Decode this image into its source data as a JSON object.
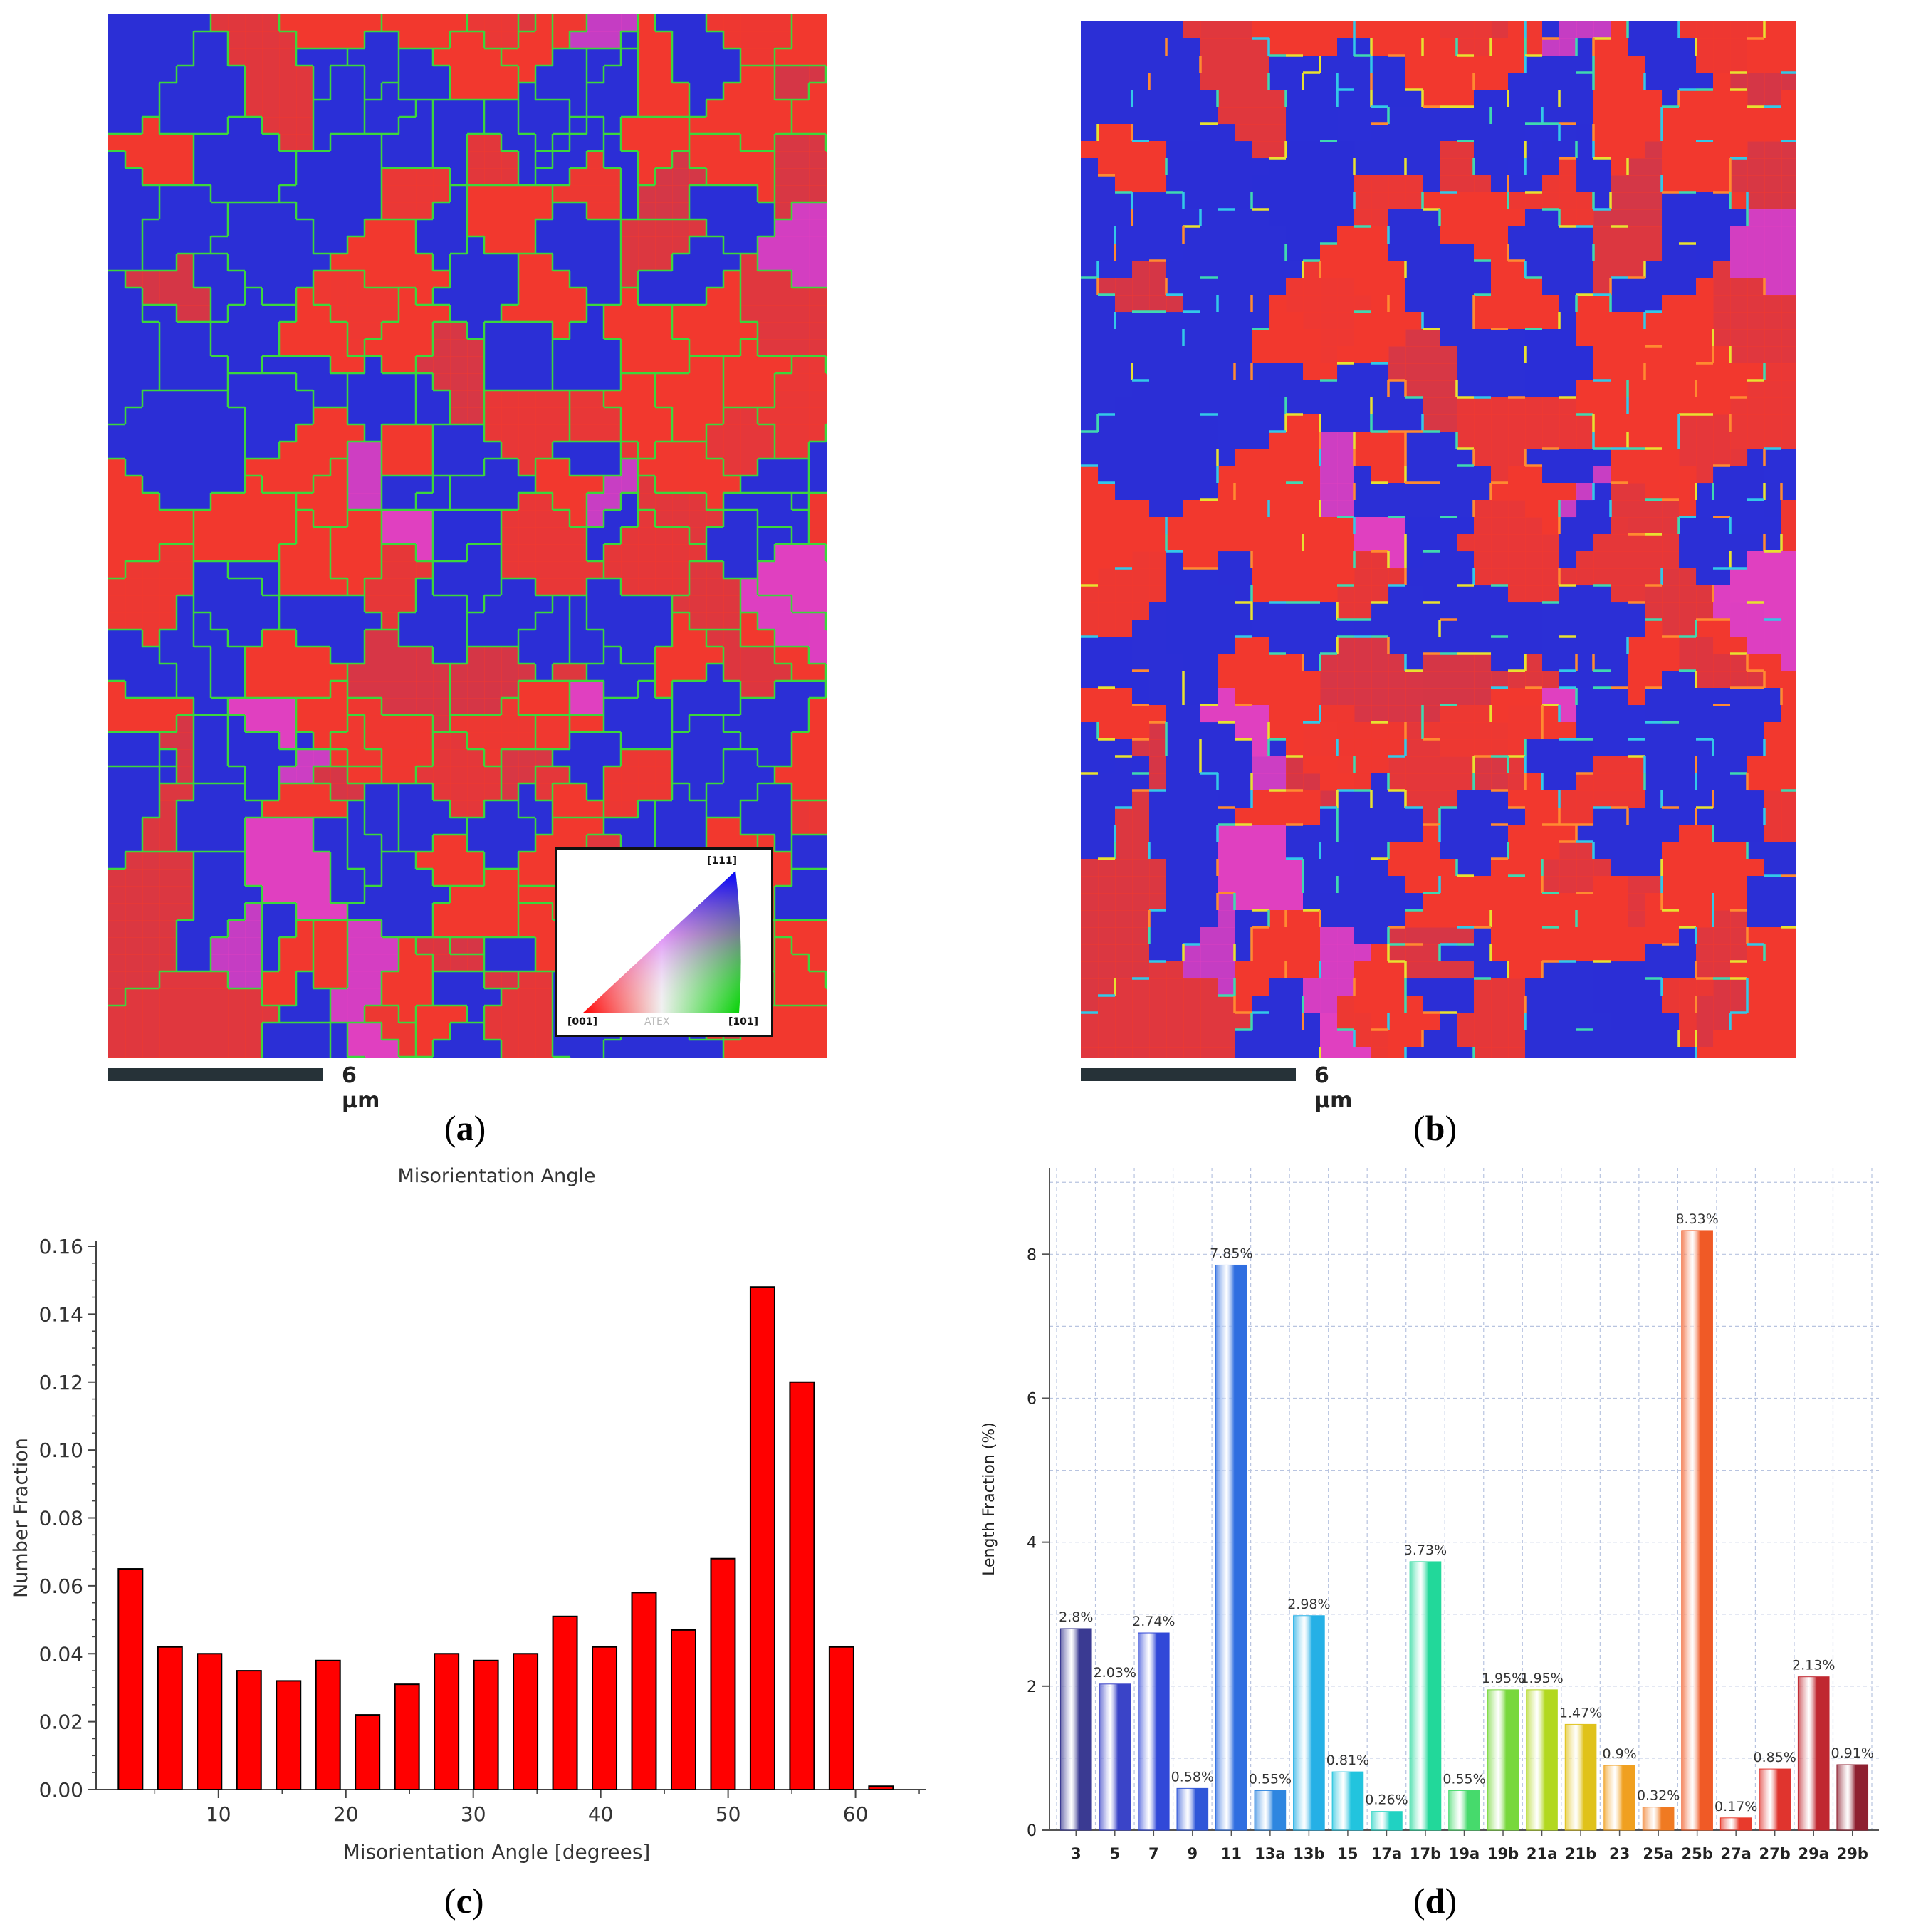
{
  "panel_a": {
    "caption_letter": "a",
    "scale_label": "6 µm",
    "legend": {
      "top": "[111]",
      "left": "[001]",
      "right": "[101]",
      "watermark": "ATEX"
    }
  },
  "panel_b": {
    "caption_letter": "b",
    "scale_label": "6 µm"
  },
  "panel_c": {
    "caption_letter": "c"
  },
  "panel_d": {
    "caption_letter": "d"
  },
  "colors": {
    "red_grain": "#f2382e",
    "blue_grain": "#2b2fd6",
    "green_boundary": "#3cd63c",
    "bar_red": "#ff0000"
  },
  "chart_data": [
    {
      "id": "c",
      "type": "bar",
      "title": "Misorientation Angle",
      "xlabel": "Misorientation Angle [degrees]",
      "ylabel": "Number Fraction",
      "x": [
        3.1,
        6.2,
        9.3,
        12.4,
        15.5,
        18.6,
        21.7,
        24.8,
        27.9,
        31.0,
        34.1,
        37.2,
        40.3,
        43.4,
        46.5,
        49.6,
        52.7,
        55.8,
        58.9,
        62.0
      ],
      "values": [
        0.065,
        0.042,
        0.04,
        0.035,
        0.032,
        0.038,
        0.022,
        0.031,
        0.04,
        0.038,
        0.04,
        0.051,
        0.042,
        0.058,
        0.047,
        0.068,
        0.148,
        0.12,
        0.042,
        0.001
      ],
      "xlim": [
        0.4,
        65.5
      ],
      "ylim": [
        0,
        0.16
      ],
      "xticks": [
        "10",
        "20",
        "30",
        "40",
        "50",
        "60"
      ],
      "xtick_values": [
        10,
        20,
        30,
        40,
        50,
        60
      ],
      "yticks": [
        "0.00",
        "0.02",
        "0.04",
        "0.06",
        "0.08",
        "0.10",
        "0.12",
        "0.14",
        "0.16"
      ],
      "grid": false
    },
    {
      "id": "d",
      "type": "bar",
      "xlabel": "",
      "ylabel": "Length Fraction (%)",
      "categories": [
        "3",
        "5",
        "7",
        "9",
        "11",
        "13a",
        "13b",
        "15",
        "17a",
        "17b",
        "19a",
        "19b",
        "21a",
        "21b",
        "23",
        "25a",
        "25b",
        "27a",
        "27b",
        "29a",
        "29b"
      ],
      "values": [
        2.8,
        2.03,
        2.74,
        0.58,
        7.85,
        0.55,
        2.98,
        0.81,
        0.26,
        3.73,
        0.55,
        1.95,
        1.95,
        1.47,
        0.9,
        0.32,
        8.33,
        0.17,
        0.85,
        2.13,
        0.91
      ],
      "labels": [
        "2.8%",
        "2.03%",
        "2.74%",
        "0.58%",
        "7.85%",
        "0.55%",
        "2.98%",
        "0.81%",
        "0.26%",
        "3.73%",
        "0.55%",
        "1.95%",
        "1.95%",
        "1.47%",
        "0.9%",
        "0.32%",
        "8.33%",
        "0.17%",
        "0.85%",
        "2.13%",
        "0.91%"
      ],
      "bar_colors": [
        "#3a3a92",
        "#3a44c8",
        "#3148d8",
        "#2f56d8",
        "#2f6ee0",
        "#2e86e0",
        "#25b0e6",
        "#22c4de",
        "#20d2c2",
        "#22d89a",
        "#46da6c",
        "#78d83c",
        "#b2d820",
        "#e0c21a",
        "#f0a020",
        "#f07a22",
        "#f05a26",
        "#e83a2c",
        "#e0342e",
        "#c02830",
        "#8e2030"
      ],
      "ylim": [
        0,
        9.2
      ],
      "yticks": [
        "0",
        "2",
        "4",
        "6",
        "8"
      ],
      "ytick_values": [
        0,
        2,
        4,
        6,
        8
      ],
      "grid": true
    }
  ]
}
